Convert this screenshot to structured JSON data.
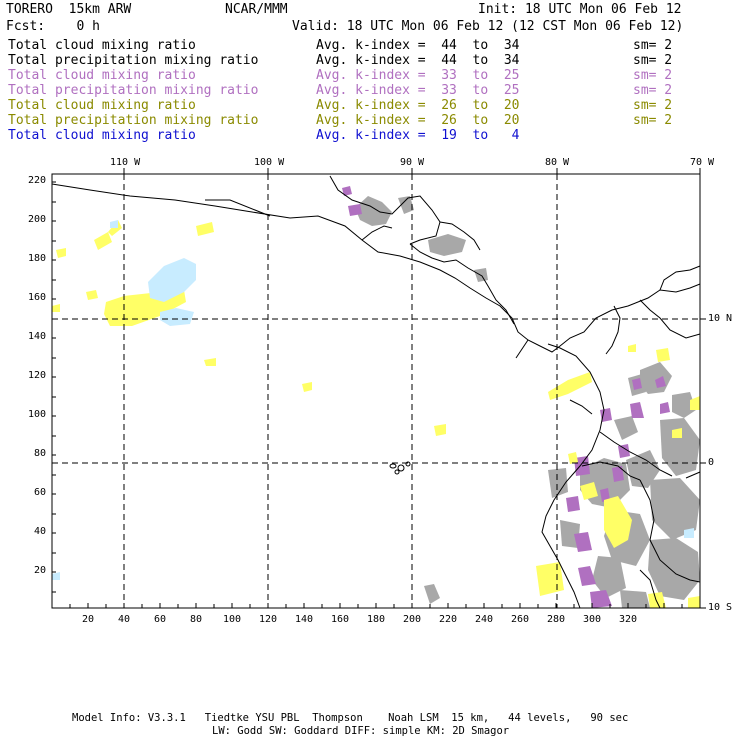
{
  "header": {
    "model": "TORERO  15km ARW",
    "org": "NCAR/MMM",
    "init": "Init: 18 UTC Mon 06 Feb 12",
    "fcst": "Fcst:    0 h",
    "valid": "Valid: 18 UTC Mon 06 Feb 12 (12 CST Mon 06 Feb 12)"
  },
  "legend": [
    {
      "field": "Total cloud mixing ratio",
      "kindex": "Avg. k-index =  44  to  34",
      "sm": "sm= 2",
      "color": "#000000"
    },
    {
      "field": "Total precipitation mixing ratio",
      "kindex": "Avg. k-index =  44  to  34",
      "sm": "sm= 2",
      "color": "#000000"
    },
    {
      "field": "Total cloud mixing ratio",
      "kindex": "Avg. k-index =  33  to  25",
      "sm": "sm= 2",
      "color": "#b070c0"
    },
    {
      "field": "Total precipitation mixing ratio",
      "kindex": "Avg. k-index =  33  to  25",
      "sm": "sm= 2",
      "color": "#b070c0"
    },
    {
      "field": "Total cloud mixing ratio",
      "kindex": "Avg. k-index =  26  to  20",
      "sm": "sm= 2",
      "color": "#8a8a00"
    },
    {
      "field": "Total precipitation mixing ratio",
      "kindex": "Avg. k-index =  26  to  20",
      "sm": "sm= 2",
      "color": "#8a8a00"
    },
    {
      "field": "Total cloud mixing ratio",
      "kindex": "Avg. k-index =  19  to   4",
      "sm": "",
      "color": "#1010d0"
    }
  ],
  "map": {
    "lon_labels": [
      "110 W",
      "100 W",
      "90 W",
      "80 W",
      "70 W"
    ],
    "lat_labels": [
      "10 N",
      "0",
      "10 S"
    ],
    "x_ticks": [
      "20",
      "40",
      "60",
      "80",
      "100",
      "120",
      "140",
      "160",
      "180",
      "200",
      "220",
      "240",
      "260",
      "280",
      "300",
      "320"
    ],
    "y_ticks": [
      "220",
      "200",
      "180",
      "160",
      "140",
      "120",
      "100",
      "80",
      "60",
      "40",
      "20"
    ],
    "colors": {
      "gray": "#a8a8a8",
      "purple": "#b070c0",
      "yellow": "#ffff66",
      "lightblue": "#c8ecff",
      "frame": "#000000"
    }
  },
  "footer": {
    "line1": "Model Info: V3.3.1   Tiedtke YSU PBL  Thompson    Noah LSM  15 km,   44 levels,   90 sec",
    "line2": "LW: Godd SW: Goddard DIFF: simple KM: 2D Smagor"
  }
}
